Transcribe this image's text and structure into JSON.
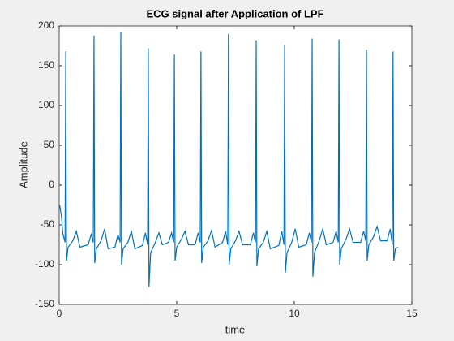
{
  "chart_data": {
    "type": "line",
    "title": "ECG signal after Application of LPF",
    "xlabel": "time",
    "ylabel": "Amplitude",
    "color": "#0072bd",
    "xlim": [
      0,
      15
    ],
    "xticks": [
      0,
      5,
      10,
      15
    ],
    "ylim": [
      -150,
      200
    ],
    "yticks": [
      -150,
      -100,
      -50,
      0,
      50,
      100,
      150,
      200
    ],
    "x": [
      0.02,
      0.1,
      0.15,
      0.25,
      0.28,
      0.31,
      0.38,
      0.58,
      0.73,
      0.88,
      1.23,
      1.36,
      1.45,
      1.48,
      1.51,
      1.58,
      1.78,
      1.93,
      2.08,
      2.37,
      2.5,
      2.59,
      2.62,
      2.65,
      2.72,
      2.92,
      3.07,
      3.22,
      3.54,
      3.67,
      3.76,
      3.79,
      3.82,
      3.89,
      4.09,
      4.24,
      4.39,
      4.65,
      4.78,
      4.87,
      4.9,
      4.93,
      5.0,
      5.2,
      5.35,
      5.5,
      5.78,
      5.91,
      6.0,
      6.03,
      6.06,
      6.13,
      6.33,
      6.48,
      6.63,
      6.95,
      7.08,
      7.17,
      7.2,
      7.23,
      7.3,
      7.5,
      7.65,
      7.8,
      8.13,
      8.26,
      8.35,
      8.38,
      8.41,
      8.48,
      8.68,
      8.83,
      8.98,
      9.34,
      9.47,
      9.56,
      9.59,
      9.62,
      9.69,
      9.89,
      10.04,
      10.19,
      10.51,
      10.64,
      10.73,
      10.76,
      10.79,
      10.86,
      11.06,
      11.21,
      11.36,
      11.65,
      11.78,
      11.87,
      11.9,
      11.93,
      12.0,
      12.2,
      12.35,
      12.5,
      12.82,
      12.95,
      13.04,
      13.07,
      13.1,
      13.17,
      13.37,
      13.52,
      13.67,
      13.95,
      14.08,
      14.17,
      14.2,
      14.23,
      14.3,
      14.4
    ],
    "values": [
      -25,
      -40,
      -60,
      -72,
      168,
      -95,
      -78,
      -70,
      -58,
      -78,
      -75,
      -62,
      -72,
      188,
      -98,
      -80,
      -70,
      -55,
      -80,
      -78,
      -62,
      -72,
      192,
      -100,
      -80,
      -72,
      -58,
      -80,
      -76,
      -60,
      -75,
      172,
      -128,
      -85,
      -72,
      -60,
      -75,
      -72,
      -60,
      -72,
      164,
      -95,
      -78,
      -68,
      -58,
      -75,
      -75,
      -60,
      -72,
      168,
      -98,
      -78,
      -70,
      -57,
      -78,
      -72,
      -58,
      -75,
      190,
      -100,
      -80,
      -70,
      -58,
      -75,
      -75,
      -60,
      -72,
      182,
      -102,
      -80,
      -72,
      -58,
      -80,
      -76,
      -58,
      -75,
      176,
      -110,
      -85,
      -72,
      -55,
      -78,
      -75,
      -60,
      -72,
      184,
      -115,
      -85,
      -70,
      -55,
      -75,
      -72,
      -58,
      -72,
      183,
      -100,
      -80,
      -68,
      -55,
      -72,
      -72,
      -58,
      -70,
      170,
      -95,
      -75,
      -65,
      -52,
      -70,
      -70,
      -55,
      -75,
      168,
      -95,
      -80,
      -78
    ]
  }
}
